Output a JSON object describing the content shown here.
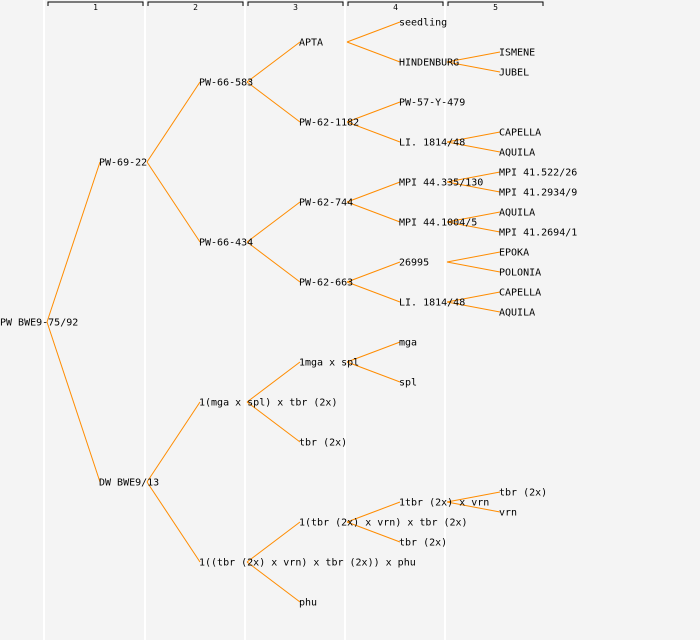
{
  "header": {
    "generations": [
      "1",
      "2",
      "3",
      "4",
      "5"
    ]
  },
  "colors": {
    "edge": "#ff8c00",
    "background": "#f4f4f4",
    "divider": "#ffffff"
  },
  "tree": {
    "t": "PW BWE9-75/92",
    "c": [
      {
        "t": "PW-69-22",
        "c": [
          {
            "t": "PW-66-583",
            "c": [
              {
                "t": "APTA",
                "c": [
                  {
                    "t": "seedling"
                  },
                  {
                    "t": "HINDENBURG",
                    "c": [
                      {
                        "t": "ISMENE"
                      },
                      {
                        "t": "JUBEL"
                      }
                    ]
                  }
                ]
              },
              {
                "t": "PW-62-1182",
                "c": [
                  {
                    "t": "PW-57-Y-479"
                  },
                  {
                    "t": "LI. 1814/48",
                    "c": [
                      {
                        "t": "CAPELLA"
                      },
                      {
                        "t": "AQUILA"
                      }
                    ]
                  }
                ]
              }
            ]
          },
          {
            "t": "PW-66-434",
            "c": [
              {
                "t": "PW-62-744",
                "c": [
                  {
                    "t": "MPI 44.335/130",
                    "c": [
                      {
                        "t": "MPI 41.522/26"
                      },
                      {
                        "t": "MPI 41.2934/9"
                      }
                    ]
                  },
                  {
                    "t": "MPI 44.1004/5",
                    "c": [
                      {
                        "t": "AQUILA"
                      },
                      {
                        "t": "MPI 41.2694/1"
                      }
                    ]
                  }
                ]
              },
              {
                "t": "PW-62-663",
                "c": [
                  {
                    "t": "26995",
                    "c": [
                      {
                        "t": "EPOKA"
                      },
                      {
                        "t": "POLONIA"
                      }
                    ]
                  },
                  {
                    "t": "LI. 1814/48",
                    "c": [
                      {
                        "t": "CAPELLA"
                      },
                      {
                        "t": "AQUILA"
                      }
                    ]
                  }
                ]
              }
            ]
          }
        ]
      },
      {
        "t": "DW BWE9/13",
        "c": [
          {
            "t": "1(mga x spl) x tbr (2x)",
            "c": [
              {
                "t": "1mga x spl",
                "c": [
                  {
                    "t": "mga"
                  },
                  {
                    "t": "spl"
                  }
                ]
              },
              {
                "t": "tbr (2x)"
              }
            ]
          },
          {
            "t": "1((tbr (2x) x vrn) x tbr (2x)) x phu",
            "c": [
              {
                "t": "1(tbr (2x) x vrn) x tbr (2x)",
                "c": [
                  {
                    "t": "1tbr (2x) x vrn",
                    "c": [
                      {
                        "t": "tbr (2x)"
                      },
                      {
                        "t": "vrn"
                      }
                    ]
                  },
                  {
                    "t": "tbr (2x)"
                  }
                ]
              },
              {
                "t": "phu"
              }
            ]
          }
        ]
      }
    ]
  }
}
